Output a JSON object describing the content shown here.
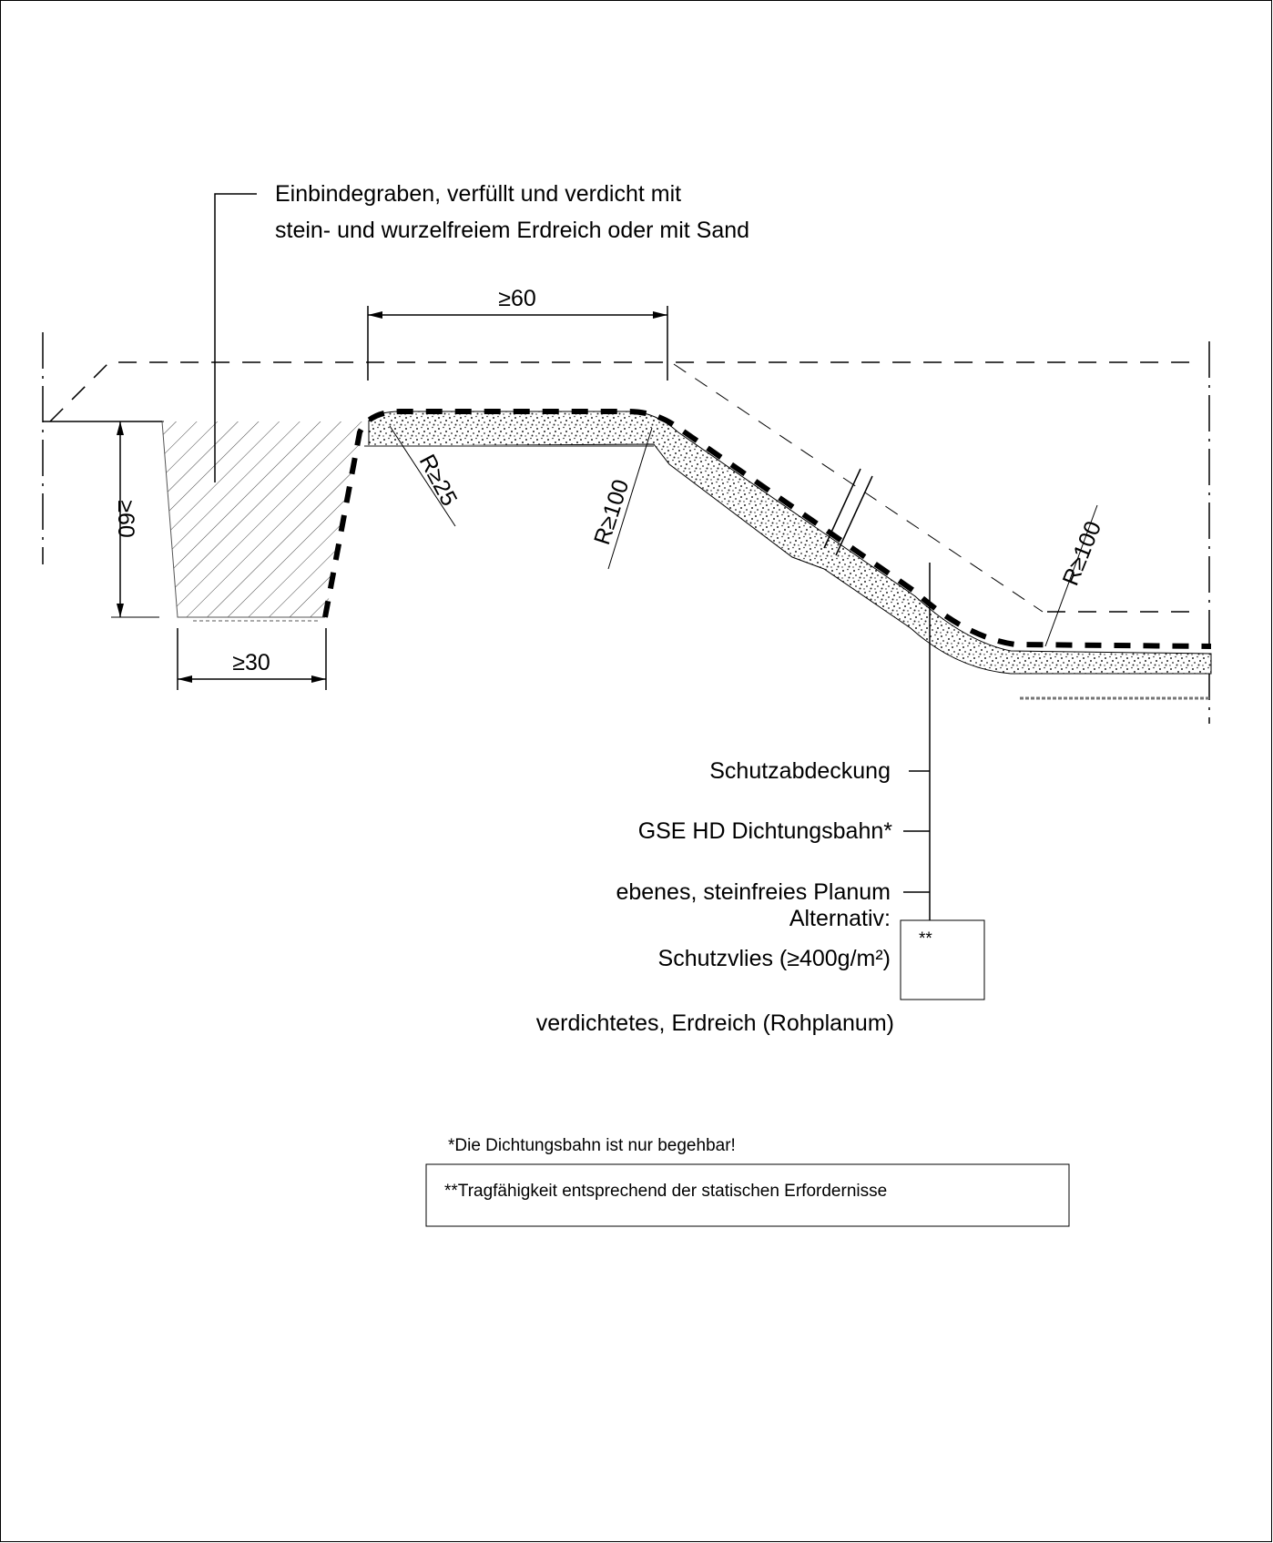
{
  "callout_trench": {
    "line1": "Einbindegraben, verfüllt und verdicht mit",
    "line2": "stein- und wurzelfreiem Erdreich oder mit Sand"
  },
  "dimensions": {
    "top_width": "≥60",
    "trench_depth": "≥60",
    "trench_bottom": "≥30",
    "radius_small": "R≥25",
    "radius_mid": "R≥100",
    "radius_right": "R≥100"
  },
  "layers": {
    "cover": "Schutzabdeckung",
    "membrane": "GSE HD Dichtungsbahn*",
    "planum_line1": "ebenes, steinfreies Planum",
    "planum_line2": "Alternativ:",
    "planum_line3": "Schutzvlies (≥400g/m²)",
    "subgrade": "verdichtetes, Erdreich (Rohplanum)",
    "box_mark": "**"
  },
  "notes": {
    "walkable": "*Die Dichtungsbahn ist nur begehbar!",
    "load": "**Tragfähigkeit  entsprechend der statischen Erfordernisse"
  }
}
